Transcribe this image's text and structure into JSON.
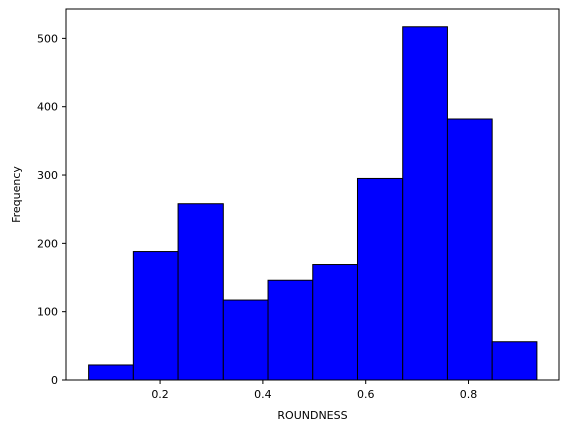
{
  "chart_data": {
    "type": "bar",
    "subtype": "histogram",
    "xlabel": "ROUNDNESS",
    "ylabel": "Frequency",
    "xlim": [
      0.017,
      0.976
    ],
    "ylim": [
      0,
      543
    ],
    "xticks": [
      0.2,
      0.4,
      0.6,
      0.8
    ],
    "xtick_labels": [
      "0.2",
      "0.4",
      "0.6",
      "0.8"
    ],
    "yticks": [
      0,
      100,
      200,
      300,
      400,
      500
    ],
    "ytick_labels": [
      "0",
      "100",
      "200",
      "300",
      "400",
      "500"
    ],
    "bin_edges": [
      0.061,
      0.148,
      0.235,
      0.323,
      0.41,
      0.497,
      0.584,
      0.672,
      0.759,
      0.846,
      0.933
    ],
    "values": [
      22,
      188,
      258,
      117,
      146,
      169,
      295,
      517,
      382,
      56
    ],
    "bar_fill": "#0000ff",
    "bar_edge": "#000000",
    "grid": false,
    "legend": "none"
  }
}
